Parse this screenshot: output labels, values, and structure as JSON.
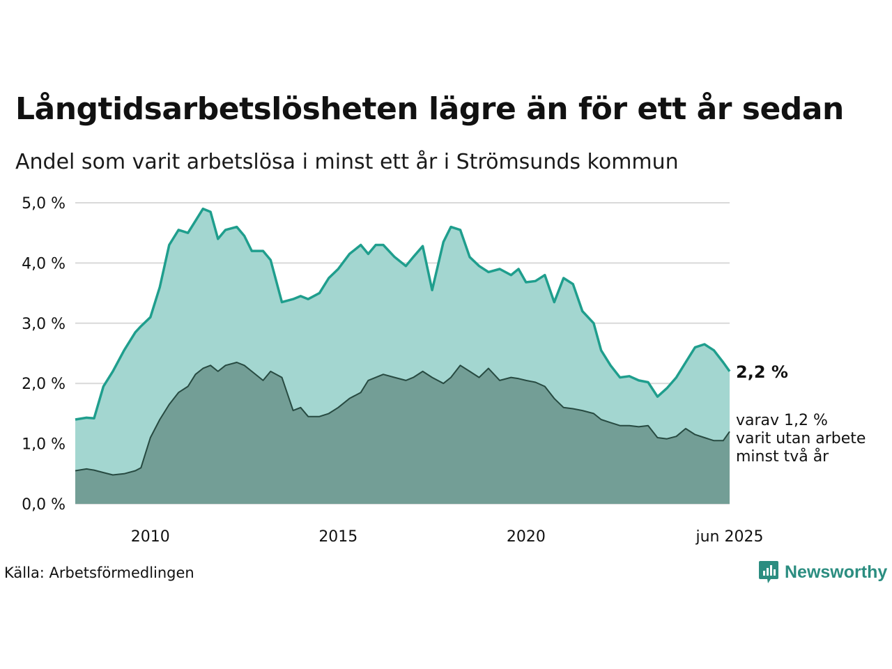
{
  "title": "Långtidsarbetslösheten lägre än för ett år sedan",
  "subtitle": "Andel som varit arbetslösa i minst ett år i Strömsunds kommun",
  "source": "Källa: Arbetsförmedlingen",
  "brand": "Newsworthy",
  "colors": {
    "long_line": "#1f9e8d",
    "long_fill": "#a3d6d0",
    "very_long_line": "#274a41",
    "very_long_fill": "#739e96",
    "grid": "#d9d9d9",
    "brand": "#2b8d80"
  },
  "chart_data": {
    "type": "area",
    "x_unit": "year",
    "xlim": [
      2008.0,
      2025.42
    ],
    "ylim": [
      0,
      5.0
    ],
    "y_ticks": [
      "0,0 %",
      "1,0 %",
      "2,0 %",
      "3,0 %",
      "4,0 %",
      "5,0 %"
    ],
    "x_ticks": [
      {
        "x": 2010,
        "label": "2010"
      },
      {
        "x": 2015,
        "label": "2015"
      },
      {
        "x": 2020,
        "label": "2020"
      },
      {
        "x": 2025.42,
        "label": "jun 2025"
      }
    ],
    "grid": true,
    "end_label": "2,2 %",
    "annotation": [
      "varav 1,2 %",
      "varit utan arbete",
      "minst två år"
    ],
    "series": [
      {
        "key": "long",
        "x": [
          2008.0,
          2008.3,
          2008.5,
          2008.75,
          2009.0,
          2009.3,
          2009.6,
          2009.75,
          2010.0,
          2010.25,
          2010.5,
          2010.75,
          2011.0,
          2011.2,
          2011.4,
          2011.6,
          2011.8,
          2012.0,
          2012.3,
          2012.5,
          2012.7,
          2013.0,
          2013.2,
          2013.5,
          2013.8,
          2014.0,
          2014.2,
          2014.5,
          2014.75,
          2015.0,
          2015.3,
          2015.6,
          2015.8,
          2016.0,
          2016.2,
          2016.5,
          2016.8,
          2017.0,
          2017.25,
          2017.5,
          2017.8,
          2018.0,
          2018.25,
          2018.5,
          2018.75,
          2019.0,
          2019.3,
          2019.6,
          2019.8,
          2020.0,
          2020.25,
          2020.5,
          2020.75,
          2021.0,
          2021.25,
          2021.5,
          2021.8,
          2022.0,
          2022.25,
          2022.5,
          2022.75,
          2023.0,
          2023.25,
          2023.5,
          2023.75,
          2024.0,
          2024.25,
          2024.5,
          2024.75,
          2025.0,
          2025.25,
          2025.42
        ],
        "values": [
          1.4,
          1.43,
          1.42,
          1.95,
          2.2,
          2.55,
          2.85,
          2.95,
          3.1,
          3.6,
          4.3,
          4.55,
          4.5,
          4.7,
          4.9,
          4.85,
          4.4,
          4.55,
          4.6,
          4.45,
          4.2,
          4.2,
          4.05,
          3.35,
          3.4,
          3.45,
          3.4,
          3.5,
          3.75,
          3.9,
          4.15,
          4.3,
          4.15,
          4.3,
          4.3,
          4.1,
          3.95,
          4.1,
          4.28,
          3.55,
          4.35,
          4.6,
          4.55,
          4.1,
          3.95,
          3.85,
          3.9,
          3.8,
          3.9,
          3.68,
          3.7,
          3.8,
          3.35,
          3.75,
          3.65,
          3.2,
          3.0,
          2.55,
          2.3,
          2.1,
          2.12,
          2.05,
          2.02,
          1.78,
          1.92,
          2.1,
          2.35,
          2.6,
          2.65,
          2.55,
          2.35,
          2.2
        ]
      },
      {
        "key": "very_long",
        "x": [
          2008.0,
          2008.3,
          2008.5,
          2008.75,
          2009.0,
          2009.3,
          2009.6,
          2009.75,
          2010.0,
          2010.25,
          2010.5,
          2010.75,
          2011.0,
          2011.2,
          2011.4,
          2011.6,
          2011.8,
          2012.0,
          2012.3,
          2012.5,
          2012.7,
          2013.0,
          2013.2,
          2013.5,
          2013.8,
          2014.0,
          2014.2,
          2014.5,
          2014.75,
          2015.0,
          2015.3,
          2015.6,
          2015.8,
          2016.0,
          2016.2,
          2016.5,
          2016.8,
          2017.0,
          2017.25,
          2017.5,
          2017.8,
          2018.0,
          2018.25,
          2018.5,
          2018.75,
          2019.0,
          2019.3,
          2019.6,
          2019.8,
          2020.0,
          2020.25,
          2020.5,
          2020.75,
          2021.0,
          2021.25,
          2021.5,
          2021.8,
          2022.0,
          2022.25,
          2022.5,
          2022.75,
          2023.0,
          2023.25,
          2023.5,
          2023.75,
          2024.0,
          2024.25,
          2024.5,
          2024.75,
          2025.0,
          2025.25,
          2025.42
        ],
        "values": [
          0.55,
          0.58,
          0.56,
          0.52,
          0.48,
          0.5,
          0.55,
          0.6,
          1.1,
          1.4,
          1.65,
          1.85,
          1.95,
          2.15,
          2.25,
          2.3,
          2.2,
          2.3,
          2.35,
          2.3,
          2.2,
          2.05,
          2.2,
          2.1,
          1.55,
          1.6,
          1.45,
          1.45,
          1.5,
          1.6,
          1.75,
          1.85,
          2.05,
          2.1,
          2.15,
          2.1,
          2.05,
          2.1,
          2.2,
          2.1,
          2.0,
          2.1,
          2.3,
          2.2,
          2.1,
          2.25,
          2.05,
          2.1,
          2.08,
          2.05,
          2.02,
          1.95,
          1.75,
          1.6,
          1.58,
          1.55,
          1.5,
          1.4,
          1.35,
          1.3,
          1.3,
          1.28,
          1.3,
          1.1,
          1.08,
          1.12,
          1.25,
          1.15,
          1.1,
          1.05,
          1.05,
          1.2
        ]
      }
    ]
  }
}
